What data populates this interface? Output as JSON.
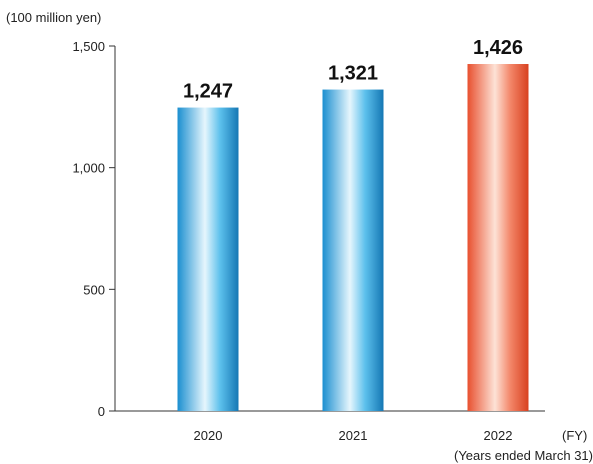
{
  "chart_data": {
    "type": "bar",
    "unit_label": "(100 million yen)",
    "categories": [
      "2020",
      "2021",
      "2022"
    ],
    "values": [
      1247,
      1321,
      1426
    ],
    "value_labels": [
      "1,247",
      "1,321",
      "1,426"
    ],
    "y_ticks": [
      0,
      500,
      1000,
      1500
    ],
    "y_tick_labels": [
      "0",
      "500",
      "1,000",
      "1,500"
    ],
    "ylim": [
      0,
      1500
    ],
    "x_unit": "(FY)",
    "footnote": "(Years ended March 31)",
    "grid": false,
    "colors": {
      "default_bar": "#1f9ad6",
      "highlight_bar": "#ea5a3c",
      "axis": "#333333"
    },
    "highlight_index": 2
  }
}
